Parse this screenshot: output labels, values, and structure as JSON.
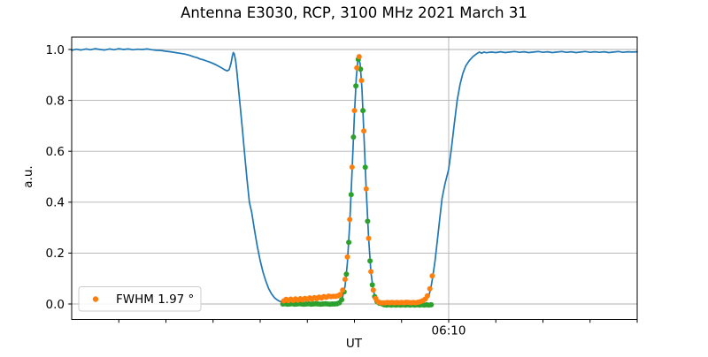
{
  "chart_data": {
    "type": "line",
    "title": "Antenna E3030, RCP, 3100 MHz 2021 March 31",
    "xlabel": "UT",
    "ylabel": "a.u.",
    "x_axis": {
      "unit": "time (minutes since midnight)",
      "min": 330,
      "max": 390,
      "ticks": [
        {
          "t": 335,
          "label": ""
        },
        {
          "t": 340,
          "label": ""
        },
        {
          "t": 345,
          "label": ""
        },
        {
          "t": 350,
          "label": ""
        },
        {
          "t": 355,
          "label": ""
        },
        {
          "t": 360,
          "label": ""
        },
        {
          "t": 365,
          "label": ""
        },
        {
          "t": 370,
          "label": "06:10"
        },
        {
          "t": 375,
          "label": ""
        },
        {
          "t": 380,
          "label": ""
        },
        {
          "t": 385,
          "label": ""
        },
        {
          "t": 390,
          "label": ""
        }
      ],
      "gridline_at": [
        370
      ]
    },
    "y_axis": {
      "min": -0.061,
      "max": 1.049,
      "ticks": [
        {
          "v": 0.0,
          "label": "0.0"
        },
        {
          "v": 0.2,
          "label": "0.2"
        },
        {
          "v": 0.4,
          "label": "0.4"
        },
        {
          "v": 0.6,
          "label": "0.6"
        },
        {
          "v": 0.8,
          "label": "0.8"
        },
        {
          "v": 1.0,
          "label": "1.0"
        }
      ],
      "grid": true
    },
    "grid_color": "#b0b0b0",
    "legend": {
      "label": "FWHM 1.97 °",
      "marker_color": "#ff7f0e",
      "position": "lower left"
    },
    "series": [
      {
        "name": "antenna-signal",
        "type": "line",
        "color": "#1f77b4",
        "line_width": 1.7,
        "points": [
          [
            330,
            0.997
          ],
          [
            330.5,
            1.001
          ],
          [
            331,
            0.998
          ],
          [
            331.5,
            1.002
          ],
          [
            332,
            0.999
          ],
          [
            332.5,
            1.003
          ],
          [
            333,
            1.0
          ],
          [
            333.5,
            0.998
          ],
          [
            334,
            1.002
          ],
          [
            334.5,
            0.999
          ],
          [
            335,
            1.003
          ],
          [
            335.5,
            1.0
          ],
          [
            336,
            1.002
          ],
          [
            336.5,
            0.999
          ],
          [
            337,
            1.001
          ],
          [
            337.5,
            1.0
          ],
          [
            338,
            1.002
          ],
          [
            338.5,
            0.999
          ],
          [
            339,
            0.997
          ],
          [
            339.5,
            0.996
          ],
          [
            340,
            0.993
          ],
          [
            340.5,
            0.991
          ],
          [
            341,
            0.988
          ],
          [
            341.5,
            0.985
          ],
          [
            342,
            0.982
          ],
          [
            342.5,
            0.977
          ],
          [
            343,
            0.971
          ],
          [
            343.3,
            0.968
          ],
          [
            343.6,
            0.963
          ],
          [
            344,
            0.959
          ],
          [
            344.3,
            0.955
          ],
          [
            344.6,
            0.951
          ],
          [
            345,
            0.945
          ],
          [
            345.3,
            0.94
          ],
          [
            345.6,
            0.934
          ],
          [
            345.9,
            0.928
          ],
          [
            346.2,
            0.921
          ],
          [
            346.5,
            0.916
          ],
          [
            346.7,
            0.92
          ],
          [
            346.9,
            0.945
          ],
          [
            347.05,
            0.975
          ],
          [
            347.15,
            0.988
          ],
          [
            347.25,
            0.983
          ],
          [
            347.4,
            0.955
          ],
          [
            347.55,
            0.905
          ],
          [
            347.7,
            0.845
          ],
          [
            347.9,
            0.77
          ],
          [
            348.1,
            0.69
          ],
          [
            348.35,
            0.59
          ],
          [
            348.6,
            0.49
          ],
          [
            348.85,
            0.4
          ],
          [
            349.1,
            0.36
          ],
          [
            349.4,
            0.29
          ],
          [
            349.7,
            0.225
          ],
          [
            350,
            0.17
          ],
          [
            350.3,
            0.125
          ],
          [
            350.6,
            0.09
          ],
          [
            350.9,
            0.06
          ],
          [
            351.2,
            0.04
          ],
          [
            351.5,
            0.025
          ],
          [
            351.8,
            0.016
          ],
          [
            352.1,
            0.01
          ],
          [
            352.4,
            0.007
          ],
          [
            353,
            0.004
          ],
          [
            354,
            0.003
          ],
          [
            355,
            0.003
          ],
          [
            356,
            0.003
          ],
          [
            357,
            0.003
          ],
          [
            357.5,
            0.004
          ],
          [
            358,
            0.003
          ],
          [
            358.25,
            0.006
          ],
          [
            358.5,
            0.012
          ],
          [
            358.75,
            0.028
          ],
          [
            359,
            0.07
          ],
          [
            359.25,
            0.16
          ],
          [
            359.5,
            0.317
          ],
          [
            359.75,
            0.52
          ],
          [
            360,
            0.745
          ],
          [
            360.2,
            0.89
          ],
          [
            360.35,
            0.95
          ],
          [
            360.46,
            0.965
          ],
          [
            360.6,
            0.945
          ],
          [
            360.8,
            0.845
          ],
          [
            361,
            0.675
          ],
          [
            361.25,
            0.45
          ],
          [
            361.5,
            0.26
          ],
          [
            361.75,
            0.125
          ],
          [
            362,
            0.053
          ],
          [
            362.25,
            0.02
          ],
          [
            362.5,
            0.008
          ],
          [
            362.75,
            0.004
          ],
          [
            363,
            0.002
          ],
          [
            363.5,
            0.001
          ],
          [
            364,
            0
          ],
          [
            365,
            0
          ],
          [
            366,
            0.001
          ],
          [
            366.5,
            0.002
          ],
          [
            367,
            0.004
          ],
          [
            367.3,
            0.007
          ],
          [
            367.6,
            0.014
          ],
          [
            367.9,
            0.032
          ],
          [
            368.1,
            0.062
          ],
          [
            368.3,
            0.105
          ],
          [
            368.55,
            0.17
          ],
          [
            368.8,
            0.25
          ],
          [
            369.05,
            0.335
          ],
          [
            369.3,
            0.415
          ],
          [
            369.6,
            0.47
          ],
          [
            370,
            0.53
          ],
          [
            370.3,
            0.615
          ],
          [
            370.6,
            0.71
          ],
          [
            370.9,
            0.8
          ],
          [
            371.2,
            0.862
          ],
          [
            371.5,
            0.906
          ],
          [
            371.8,
            0.935
          ],
          [
            372.2,
            0.957
          ],
          [
            372.6,
            0.973
          ],
          [
            373,
            0.984
          ],
          [
            373.25,
            0.99
          ],
          [
            373.5,
            0.985
          ],
          [
            373.75,
            0.99
          ],
          [
            374,
            0.987
          ],
          [
            374.5,
            0.99
          ],
          [
            375,
            0.988
          ],
          [
            375.5,
            0.991
          ],
          [
            376,
            0.988
          ],
          [
            376.5,
            0.99
          ],
          [
            377,
            0.992
          ],
          [
            377.5,
            0.989
          ],
          [
            378,
            0.991
          ],
          [
            378.5,
            0.988
          ],
          [
            379,
            0.99
          ],
          [
            379.5,
            0.992
          ],
          [
            380,
            0.989
          ],
          [
            380.5,
            0.991
          ],
          [
            381,
            0.988
          ],
          [
            381.5,
            0.99
          ],
          [
            382,
            0.992
          ],
          [
            382.5,
            0.989
          ],
          [
            383,
            0.991
          ],
          [
            383.5,
            0.988
          ],
          [
            384,
            0.99
          ],
          [
            384.5,
            0.992
          ],
          [
            385,
            0.989
          ],
          [
            385.5,
            0.991
          ],
          [
            386,
            0.989
          ],
          [
            386.5,
            0.991
          ],
          [
            387,
            0.988
          ],
          [
            387.5,
            0.99
          ],
          [
            388,
            0.992
          ],
          [
            388.5,
            0.989
          ],
          [
            389,
            0.991
          ],
          [
            389.5,
            0.99
          ],
          [
            390,
            0.991
          ]
        ]
      },
      {
        "name": "beam-data-samples",
        "type": "scatter",
        "color": "#2ca02c",
        "marker_radius": 3,
        "points": [
          [
            352.4,
            0
          ],
          [
            352.65,
            0.001
          ],
          [
            352.9,
            -0.001
          ],
          [
            353.15,
            0
          ],
          [
            353.4,
            0.001
          ],
          [
            353.65,
            -0.001
          ],
          [
            353.9,
            0
          ],
          [
            354.15,
            0.001
          ],
          [
            354.4,
            0
          ],
          [
            354.65,
            -0.001
          ],
          [
            354.9,
            0
          ],
          [
            355.15,
            0.001
          ],
          [
            355.4,
            -0.001
          ],
          [
            355.65,
            0
          ],
          [
            355.9,
            0.001
          ],
          [
            356.15,
            0
          ],
          [
            356.4,
            -0.001
          ],
          [
            356.65,
            0
          ],
          [
            356.9,
            0.001
          ],
          [
            357.15,
            0
          ],
          [
            357.4,
            -0.001
          ],
          [
            357.65,
            0
          ],
          [
            357.9,
            0
          ],
          [
            358.15,
            0.001
          ],
          [
            358.4,
            0.005
          ],
          [
            358.65,
            0.017
          ],
          [
            358.9,
            0.048
          ],
          [
            359.15,
            0.117
          ],
          [
            359.4,
            0.242
          ],
          [
            359.65,
            0.43
          ],
          [
            359.9,
            0.656
          ],
          [
            360.15,
            0.857
          ],
          [
            360.4,
            0.961
          ],
          [
            360.65,
            0.923
          ],
          [
            360.9,
            0.76
          ],
          [
            361.15,
            0.537
          ],
          [
            361.4,
            0.325
          ],
          [
            361.65,
            0.169
          ],
          [
            361.9,
            0.075
          ],
          [
            362.15,
            0.029
          ],
          [
            362.4,
            0.009
          ],
          [
            362.65,
            0.003
          ],
          [
            362.9,
            0.001
          ],
          [
            363.15,
            -0.003
          ],
          [
            363.4,
            -0.004
          ],
          [
            363.65,
            -0.003
          ],
          [
            363.9,
            -0.004
          ],
          [
            364.15,
            -0.003
          ],
          [
            364.4,
            -0.004
          ],
          [
            364.65,
            -0.003
          ],
          [
            364.9,
            -0.004
          ],
          [
            365.15,
            -0.003
          ],
          [
            365.4,
            -0.004
          ],
          [
            365.65,
            -0.003
          ],
          [
            365.9,
            -0.004
          ],
          [
            366.15,
            -0.003
          ],
          [
            366.4,
            -0.004
          ],
          [
            366.65,
            -0.003
          ],
          [
            366.9,
            -0.004
          ],
          [
            367.15,
            -0.003
          ],
          [
            367.4,
            -0.004
          ],
          [
            367.65,
            -0.003
          ],
          [
            367.9,
            -0.004
          ],
          [
            368.15,
            -0.003
          ]
        ]
      },
      {
        "name": "gaussian-fit-samples",
        "type": "scatter",
        "color": "#ff7f0e",
        "marker_radius": 3,
        "in_legend": true,
        "points": [
          [
            352.5,
            0.012
          ],
          [
            352.75,
            0.018
          ],
          [
            353,
            0.013
          ],
          [
            353.25,
            0.019
          ],
          [
            353.5,
            0.014
          ],
          [
            353.75,
            0.02
          ],
          [
            354,
            0.015
          ],
          [
            354.25,
            0.021
          ],
          [
            354.5,
            0.016
          ],
          [
            354.75,
            0.022
          ],
          [
            355,
            0.018
          ],
          [
            355.25,
            0.024
          ],
          [
            355.5,
            0.019
          ],
          [
            355.75,
            0.025
          ],
          [
            356,
            0.021
          ],
          [
            356.25,
            0.027
          ],
          [
            356.5,
            0.023
          ],
          [
            356.75,
            0.029
          ],
          [
            357,
            0.026
          ],
          [
            357.25,
            0.031
          ],
          [
            357.5,
            0.029
          ],
          [
            357.75,
            0.03
          ],
          [
            358,
            0.03
          ],
          [
            358.25,
            0.032
          ],
          [
            358.5,
            0.037
          ],
          [
            358.75,
            0.055
          ],
          [
            359,
            0.097
          ],
          [
            359.25,
            0.185
          ],
          [
            359.5,
            0.332
          ],
          [
            359.75,
            0.538
          ],
          [
            360,
            0.76
          ],
          [
            360.25,
            0.928
          ],
          [
            360.5,
            0.972
          ],
          [
            360.75,
            0.878
          ],
          [
            361,
            0.68
          ],
          [
            361.25,
            0.452
          ],
          [
            361.5,
            0.258
          ],
          [
            361.75,
            0.127
          ],
          [
            362,
            0.055
          ],
          [
            362.25,
            0.022
          ],
          [
            362.5,
            0.009
          ],
          [
            362.75,
            0.005
          ],
          [
            363,
            0.004
          ],
          [
            363.25,
            0.005
          ],
          [
            363.5,
            0.006
          ],
          [
            363.75,
            0.005
          ],
          [
            364,
            0.006
          ],
          [
            364.25,
            0.005
          ],
          [
            364.5,
            0.006
          ],
          [
            364.75,
            0.005
          ],
          [
            365,
            0.006
          ],
          [
            365.25,
            0.005
          ],
          [
            365.5,
            0.007
          ],
          [
            365.75,
            0.006
          ],
          [
            366,
            0.005
          ],
          [
            366.25,
            0.006
          ],
          [
            366.5,
            0.005
          ],
          [
            366.75,
            0.007
          ],
          [
            367,
            0.009
          ],
          [
            367.25,
            0.013
          ],
          [
            367.5,
            0.019
          ],
          [
            367.75,
            0.032
          ],
          [
            368,
            0.06
          ],
          [
            368.25,
            0.11
          ]
        ]
      }
    ]
  }
}
